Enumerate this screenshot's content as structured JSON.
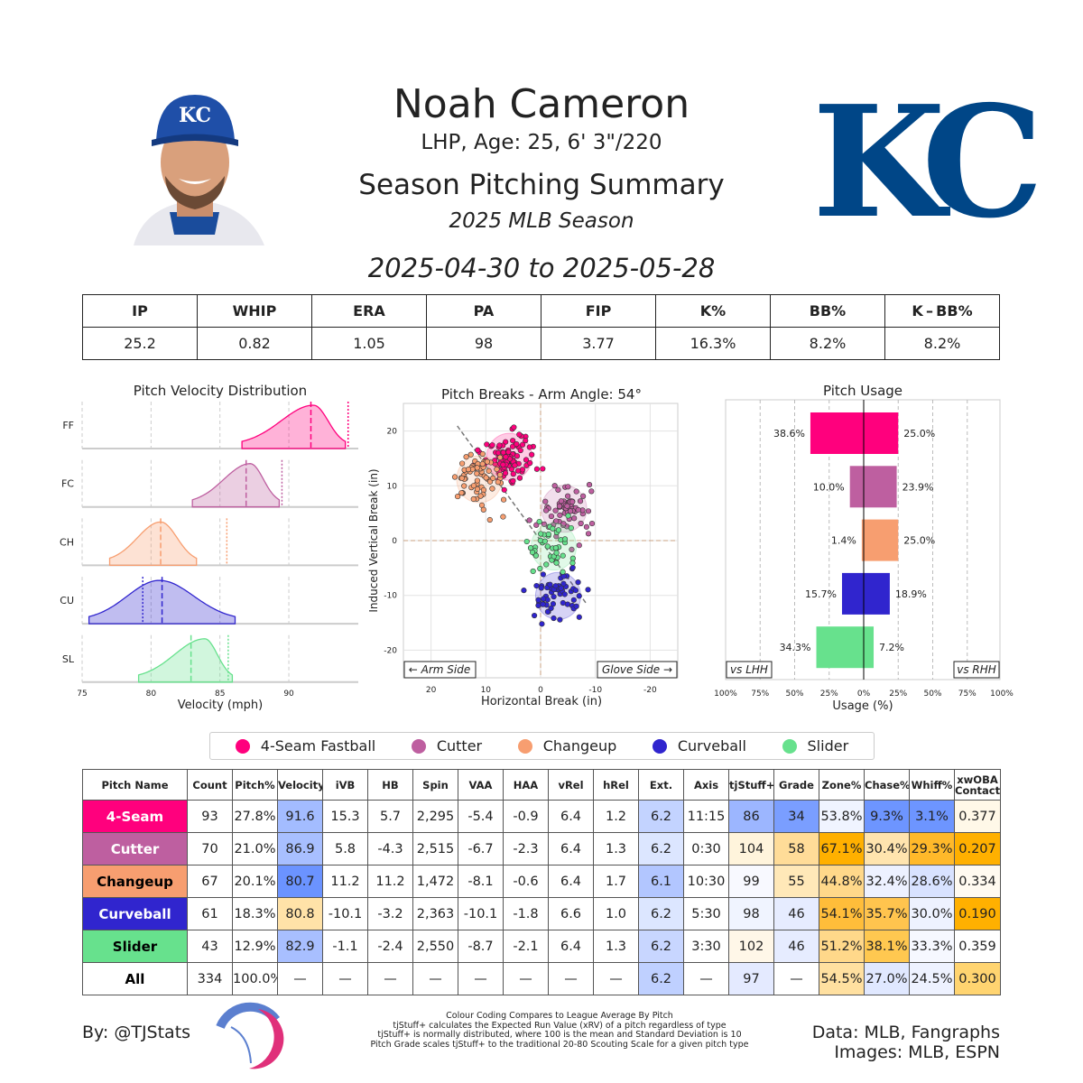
{
  "header": {
    "name": "Noah Cameron",
    "bio": "LHP, Age: 25, 6' 3\"/220",
    "title": "Season Pitching Summary",
    "season": "2025 MLB Season",
    "date_range": "2025-04-30 to 2025-05-28",
    "team_logo": "KC"
  },
  "stats": {
    "headers": [
      "IP",
      "WHIP",
      "ERA",
      "PA",
      "FIP",
      "K%",
      "BB%",
      "K – BB%"
    ],
    "values": [
      "25.2",
      "0.82",
      "1.05",
      "98",
      "3.77",
      "16.3%",
      "8.2%",
      "8.2%"
    ]
  },
  "pitch_colors": {
    "FF": "#FF007D",
    "FC": "#BE5FA0",
    "CH": "#F79E70",
    "CU": "#3025CE",
    "SL": "#67E18D"
  },
  "chart_data": [
    {
      "type": "area",
      "title": "Pitch Velocity Distribution",
      "xlabel": "Velocity (mph)",
      "xlim": [
        75,
        95
      ],
      "xticks": [
        "75",
        "80",
        "85",
        "90"
      ],
      "rows": [
        {
          "label": "FF",
          "mean": 91.6,
          "peak": 91.8,
          "min": 86.6,
          "max": 94.1,
          "league_avg": 94.3
        },
        {
          "label": "FC",
          "mean": 86.9,
          "peak": 87.2,
          "min": 83.0,
          "max": 89.3,
          "league_avg": 89.5
        },
        {
          "label": "CH",
          "mean": 80.7,
          "peak": 80.7,
          "min": 77.0,
          "max": 83.3,
          "league_avg": 85.5
        },
        {
          "label": "CU",
          "mean": 80.8,
          "peak": 80.6,
          "min": 75.5,
          "max": 86.1,
          "league_avg": 79.4
        },
        {
          "label": "SL",
          "mean": 82.9,
          "peak": 83.9,
          "min": 79.1,
          "max": 85.9,
          "league_avg": 85.6
        }
      ]
    },
    {
      "type": "scatter",
      "title": "Pitch Breaks - Arm Angle: 54°",
      "xlabel": "Horizontal Break (in)",
      "ylabel": "Induced Vertical Break (in)",
      "xlim": [
        25,
        -25
      ],
      "ylim": [
        -25,
        25
      ],
      "ticks": [
        "20",
        "10",
        "0",
        "-10",
        "-20"
      ],
      "arm_angle": 54,
      "left_label": "← Arm Side",
      "right_label": "Glove Side →",
      "clusters": [
        {
          "pitch": "FF",
          "hb": 5.7,
          "ivb": 15.3,
          "count": 93
        },
        {
          "pitch": "FC",
          "hb": -4.3,
          "ivb": 5.8,
          "count": 70
        },
        {
          "pitch": "CH",
          "hb": 11.2,
          "ivb": 11.2,
          "count": 67
        },
        {
          "pitch": "CU",
          "hb": -3.2,
          "ivb": -10.1,
          "count": 61
        },
        {
          "pitch": "SL",
          "hb": -2.4,
          "ivb": -1.1,
          "count": 43
        }
      ]
    },
    {
      "type": "bar",
      "title": "Pitch Usage",
      "xlabel": "Usage (%)",
      "xlim": [
        -100,
        100
      ],
      "xticks": [
        "100%",
        "75%",
        "50%",
        "25%",
        "0%",
        "25%",
        "50%",
        "75%",
        "100%"
      ],
      "left_label": "vs LHH",
      "right_label": "vs RHH",
      "categories": [
        "FF",
        "FC",
        "CH",
        "CU",
        "SL"
      ],
      "series": [
        {
          "name": "vs LHH",
          "values": [
            38.6,
            10.0,
            1.4,
            15.7,
            34.3
          ]
        },
        {
          "name": "vs RHH",
          "values": [
            25.0,
            23.9,
            25.0,
            18.9,
            7.2
          ]
        }
      ],
      "labels_lhh": [
        "38.6%",
        "10.0%",
        "1.4%",
        "15.7%",
        "34.3%"
      ],
      "labels_rhh": [
        "25.0%",
        "23.9%",
        "25.0%",
        "18.9%",
        "7.2%"
      ]
    }
  ],
  "legend": [
    {
      "label": "4-Seam Fastball",
      "code": "FF"
    },
    {
      "label": "Cutter",
      "code": "FC"
    },
    {
      "label": "Changeup",
      "code": "CH"
    },
    {
      "label": "Curveball",
      "code": "CU"
    },
    {
      "label": "Slider",
      "code": "SL"
    }
  ],
  "table": {
    "headers": [
      "Pitch Name",
      "Count",
      "Pitch%",
      "Velocity",
      "iVB",
      "HB",
      "Spin",
      "VAA",
      "HAA",
      "vRel",
      "hRel",
      "Ext.",
      "Axis",
      "tjStuff+",
      "Grade",
      "Zone%",
      "Chase%",
      "Whiff%",
      "xwOBA Contact"
    ],
    "rows": [
      {
        "name": "4-Seam",
        "bg": "#FF007D",
        "fg": "#ffffff",
        "cells": [
          "93",
          "27.8%",
          "91.6",
          "15.3",
          "5.7",
          "2,295",
          "-5.4",
          "-0.9",
          "6.4",
          "1.2",
          "6.2",
          "11:15",
          "86",
          "34",
          "53.8%",
          "9.3%",
          "3.1%",
          "0.377"
        ],
        "colors": [
          null,
          null,
          "#a3bcff",
          null,
          null,
          null,
          null,
          null,
          null,
          null,
          "#c3d3ff",
          null,
          "#9cb6ff",
          "#7a9eff",
          "#f0f4ff",
          "#6d95ff",
          "#6d95ff",
          "#fff8e8"
        ]
      },
      {
        "name": "Cutter",
        "bg": "#BE5FA0",
        "fg": "#ffffff",
        "cells": [
          "70",
          "21.0%",
          "86.9",
          "5.8",
          "-4.3",
          "2,515",
          "-6.7",
          "-2.3",
          "6.4",
          "1.3",
          "6.2",
          "0:30",
          "104",
          "58",
          "67.1%",
          "30.4%",
          "29.3%",
          "0.207"
        ],
        "colors": [
          null,
          null,
          "#a8bfff",
          null,
          null,
          null,
          null,
          null,
          null,
          null,
          "#dce6ff",
          null,
          "#fff4dc",
          "#ffdc98",
          "#ffb000",
          "#ffe4ae",
          "#ffb92a",
          "#ffb000"
        ]
      },
      {
        "name": "Changeup",
        "bg": "#F79E70",
        "fg": "#000000",
        "cells": [
          "67",
          "20.1%",
          "80.7",
          "11.2",
          "11.2",
          "1,472",
          "-8.1",
          "-0.6",
          "6.4",
          "1.7",
          "6.1",
          "10:30",
          "99",
          "55",
          "44.8%",
          "32.4%",
          "28.6%",
          "0.334"
        ],
        "colors": [
          null,
          null,
          "#6b93ff",
          null,
          null,
          null,
          null,
          null,
          null,
          null,
          "#b2c6ff",
          null,
          "#f8f9ff",
          "#ffe8b8",
          "#ffd88a",
          "#edf1ff",
          "#d8e2ff",
          "#fffaf0"
        ]
      },
      {
        "name": "Curveball",
        "bg": "#3025CE",
        "fg": "#ffffff",
        "cells": [
          "61",
          "18.3%",
          "80.8",
          "-10.1",
          "-3.2",
          "2,363",
          "-10.1",
          "-1.8",
          "6.6",
          "1.0",
          "6.2",
          "5:30",
          "98",
          "46",
          "54.1%",
          "35.7%",
          "30.0%",
          "0.190"
        ],
        "colors": [
          null,
          null,
          "#ffe2a8",
          null,
          null,
          null,
          null,
          null,
          null,
          null,
          "#dce6ff",
          null,
          "#f0f4ff",
          "#e6ecff",
          "#ffbd3a",
          "#ffc44e",
          "#eef2ff",
          "#ffb000"
        ]
      },
      {
        "name": "Slider",
        "bg": "#67E18D",
        "fg": "#000000",
        "cells": [
          "43",
          "12.9%",
          "82.9",
          "-1.1",
          "-2.4",
          "2,550",
          "-8.7",
          "-2.1",
          "6.4",
          "1.3",
          "6.2",
          "3:30",
          "102",
          "46",
          "51.2%",
          "38.1%",
          "33.3%",
          "0.359"
        ],
        "colors": [
          null,
          null,
          "#a8bfff",
          null,
          null,
          null,
          null,
          null,
          null,
          null,
          "#c8d6ff",
          null,
          "#fff7e8",
          "#e6ecff",
          "#ffd88a",
          "#ffc850",
          "#f6f8ff",
          null
        ]
      },
      {
        "name": "All",
        "bg": "#ffffff",
        "fg": "#000000",
        "cells": [
          "334",
          "100.0%",
          "—",
          "—",
          "—",
          "—",
          "—",
          "—",
          "—",
          "—",
          "6.2",
          "—",
          "97",
          "—",
          "54.5%",
          "27.0%",
          "24.5%",
          "0.300"
        ],
        "colors": [
          null,
          null,
          null,
          null,
          null,
          null,
          null,
          null,
          null,
          null,
          "#bfd0ff",
          null,
          "#e4eaff",
          null,
          "#ffe0a0",
          "#e0e8ff",
          "#eef2ff",
          "#ffd470"
        ]
      }
    ]
  },
  "footer": {
    "by": "By: @TJStats",
    "notes": [
      "Colour Coding Compares to League Average By Pitch",
      "tjStuff+ calculates the Expected Run Value (xRV) of a pitch regardless of type",
      "tjStuff+ is normally distributed, where 100 is the mean and Standard Deviation is 10",
      "Pitch Grade scales tjStuff+ to the traditional 20-80 Scouting Scale for a given pitch type"
    ],
    "data_source": "Data: MLB, Fangraphs",
    "images_source": "Images: MLB, ESPN"
  }
}
